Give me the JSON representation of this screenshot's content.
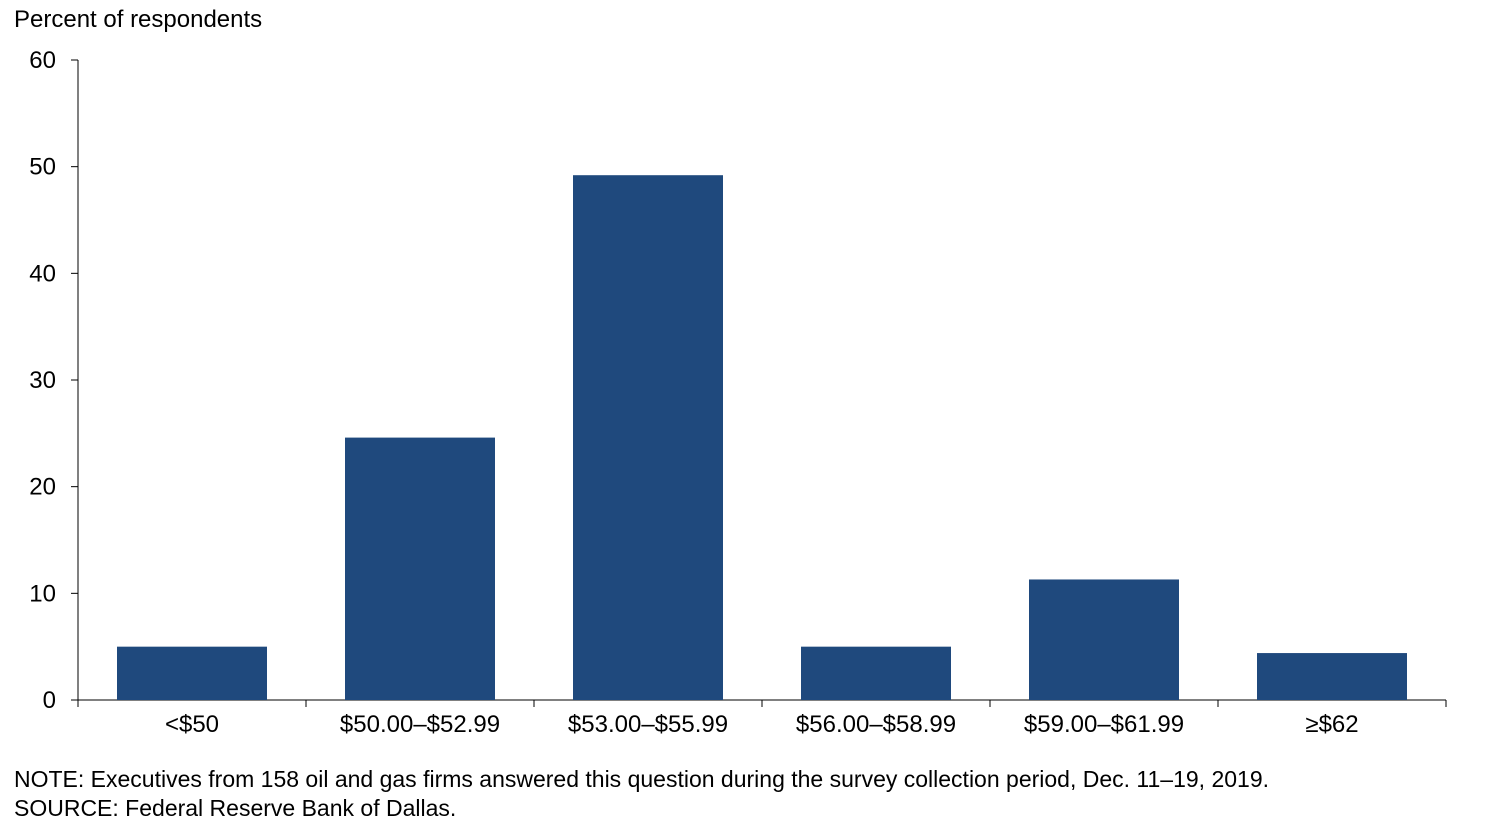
{
  "chart_data": {
    "type": "bar",
    "ylabel": "Percent of respondents",
    "xlabel": "",
    "categories": [
      "<$50",
      "$50.00–$52.99",
      "$53.00–$55.99",
      "$56.00–$58.99",
      "$59.00–$61.99",
      "≥$62"
    ],
    "values": [
      5.0,
      24.6,
      49.2,
      5.0,
      11.3,
      4.4
    ],
    "ylim": [
      0,
      60
    ],
    "yticks": [
      0,
      10,
      20,
      30,
      40,
      50,
      60
    ],
    "grid": false,
    "legend": "none",
    "bar_color": "#1f497d"
  },
  "notes": {
    "note": "NOTE: Executives from 158 oil and gas firms answered this question during the survey collection period, Dec. 11–19, 2019.",
    "source": "SOURCE: Federal Reserve Bank of Dallas."
  }
}
